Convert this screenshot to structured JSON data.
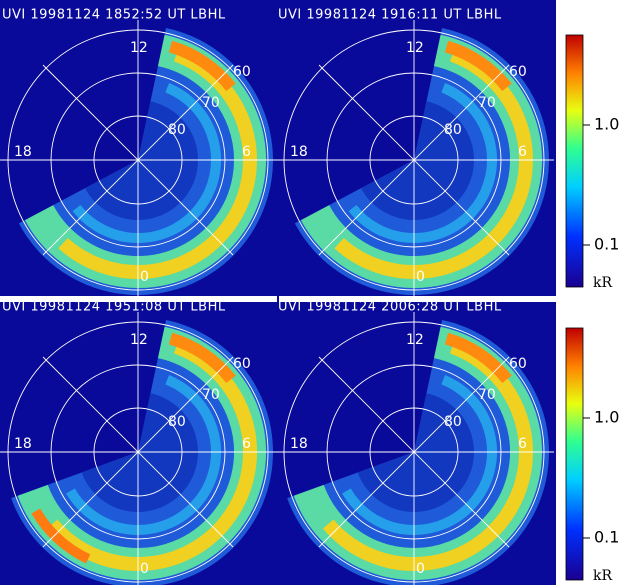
{
  "panels": [
    {
      "title": "UVI 19981124 1852:52 UT LBHL",
      "mlt_labels": [
        "12",
        "18",
        "6",
        "0"
      ],
      "lat_labels": [
        "60",
        "70",
        "80"
      ]
    },
    {
      "title": "UVI 19981124 1916:11 UT LBHL",
      "mlt_labels": [
        "12",
        "18",
        "6",
        "0"
      ],
      "lat_labels": [
        "60",
        "70",
        "80"
      ]
    },
    {
      "title": "UVI 19981124 1951:08 UT LBHL",
      "mlt_labels": [
        "12",
        "18",
        "6",
        "0"
      ],
      "lat_labels": [
        "60",
        "70",
        "80"
      ]
    },
    {
      "title": "UVI 19981124 2006:28 UT LBHL",
      "mlt_labels": [
        "12",
        "18",
        "6",
        "0"
      ],
      "lat_labels": [
        "60",
        "70",
        "80"
      ]
    }
  ],
  "colorbars": [
    {
      "tick_labels": [
        "1.0",
        "0.1"
      ],
      "unit": "kR"
    },
    {
      "tick_labels": [
        "1.0",
        "0.1"
      ],
      "unit": "kR"
    }
  ]
}
